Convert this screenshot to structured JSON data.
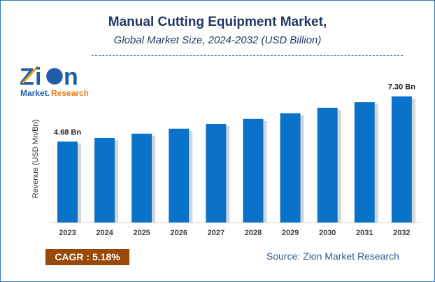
{
  "title": "Manual Cutting Equipment Market,",
  "subtitle": "Global Market Size, 2024-2032 (USD Billion)",
  "logo": {
    "text": "Zion",
    "subtext": "Market.Research"
  },
  "cagr": "CAGR : 5.18%",
  "source": "Source: Zion Market Research",
  "colors": {
    "bar": "#0a72c8",
    "title": "#1f3864",
    "cagr_bg": "#984807"
  },
  "chart_data": {
    "type": "bar",
    "title": "Manual Cutting Equipment Market,",
    "subtitle": "Global Market Size, 2024-2032 (USD Billion)",
    "ylabel": "Revenue (USD Mn/Bn)",
    "xlabel": "",
    "categories": [
      "2023",
      "2024",
      "2025",
      "2026",
      "2027",
      "2028",
      "2029",
      "2030",
      "2031",
      "2032"
    ],
    "values": [
      4.68,
      4.9,
      5.14,
      5.43,
      5.71,
      6.0,
      6.32,
      6.64,
      6.96,
      7.3
    ],
    "data_labels": {
      "0": "4.68 Bn",
      "9": "7.30 Bn"
    },
    "ylim": [
      0,
      8
    ],
    "grid": false
  }
}
